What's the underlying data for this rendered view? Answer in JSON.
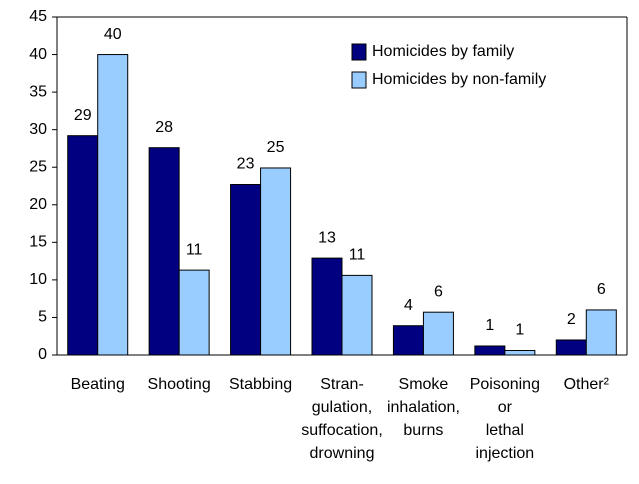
{
  "chart_data": {
    "type": "bar",
    "categories": [
      [
        "Beating"
      ],
      [
        "Shooting"
      ],
      [
        "Stabbing"
      ],
      [
        "Stran-",
        "gulation,",
        "suffocation,",
        "drowning"
      ],
      [
        "Smoke",
        "inhalation,",
        "burns"
      ],
      [
        "Poisoning",
        "or",
        "lethal",
        "injection"
      ],
      [
        "Other²"
      ]
    ],
    "series": [
      {
        "name": "Homicides by family",
        "color": "#000080",
        "values": [
          29.2,
          27.6,
          22.7,
          12.9,
          3.9,
          1.2,
          2.0
        ],
        "value_labels": [
          "29",
          "28",
          "23",
          "13",
          "4",
          "1",
          "2"
        ]
      },
      {
        "name": "Homicides by non-family",
        "color": "#99ccff",
        "values": [
          40.0,
          11.3,
          24.9,
          10.6,
          5.7,
          0.6,
          6.0
        ],
        "value_labels": [
          "40",
          "11",
          "25",
          "11",
          "6",
          "1",
          "6"
        ]
      }
    ],
    "ylim": [
      0,
      45
    ],
    "yticks": [
      0,
      5,
      10,
      15,
      20,
      25,
      30,
      35,
      40,
      45
    ],
    "grid": false,
    "legend": "upper right"
  }
}
